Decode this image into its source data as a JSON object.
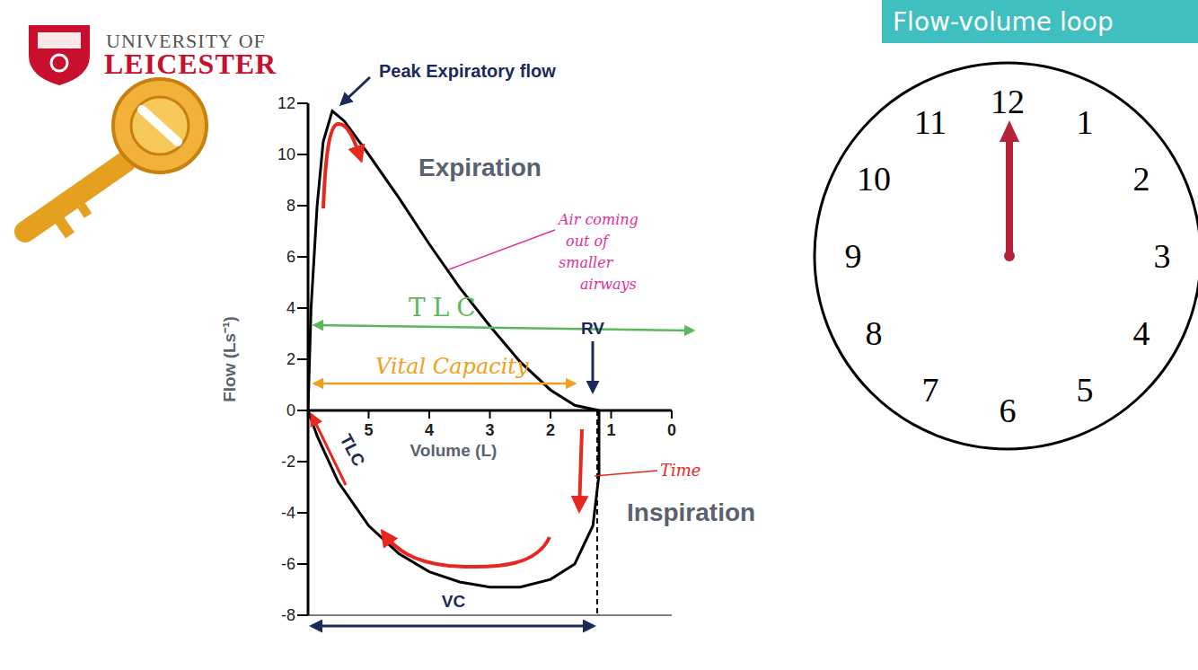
{
  "header": "Flow-volume loop",
  "logo": [
    "UNIVERSITY OF",
    "LEICESTER"
  ],
  "chart_data": {
    "type": "line",
    "x_label": "Volume (L)",
    "y_label": "Flow (Ls⁻¹)",
    "xlim": [
      6,
      0
    ],
    "xticks": [
      5,
      4,
      3,
      2,
      1,
      0
    ],
    "ylim": [
      -8,
      12
    ],
    "yticks": [
      -8,
      -6,
      -4,
      -2,
      0,
      2,
      4,
      6,
      8,
      10,
      12
    ],
    "marker": "none",
    "series": [
      {
        "name": "Expiration",
        "color": "#000000",
        "x": [
          6,
          5.95,
          5.85,
          5.75,
          5.6,
          5.4,
          5.0,
          4.5,
          4.0,
          3.5,
          3.0,
          2.5,
          2.0,
          1.6,
          1.2
        ],
        "values": [
          0,
          4,
          8,
          10.5,
          11.7,
          11.3,
          10,
          8.3,
          6.5,
          4.8,
          3.3,
          1.9,
          0.8,
          0.2,
          0
        ]
      },
      {
        "name": "Inspiration",
        "color": "#000000",
        "x": [
          1.2,
          1.2,
          1.3,
          1.6,
          2.0,
          2.5,
          3.0,
          3.5,
          4.0,
          4.5,
          5.0,
          5.5,
          5.85,
          6
        ],
        "values": [
          0,
          -2.5,
          -4.5,
          -6,
          -6.6,
          -6.9,
          -6.9,
          -6.7,
          -6.3,
          -5.6,
          -4.5,
          -2.8,
          -1,
          0
        ]
      }
    ],
    "annotations": {
      "peak": "Peak Expiratory flow",
      "smaller_airways": [
        "Air coming",
        "out of",
        "smaller",
        "airways"
      ],
      "tlc_span": "TLC",
      "vital_capacity": "Vital Capacity",
      "rv": "RV",
      "tlc_point": "TLC",
      "time": "Time",
      "vc": "VC"
    }
  },
  "clock": {
    "numbers": [
      12,
      1,
      2,
      3,
      4,
      5,
      6,
      7,
      8,
      9,
      10,
      11
    ]
  }
}
